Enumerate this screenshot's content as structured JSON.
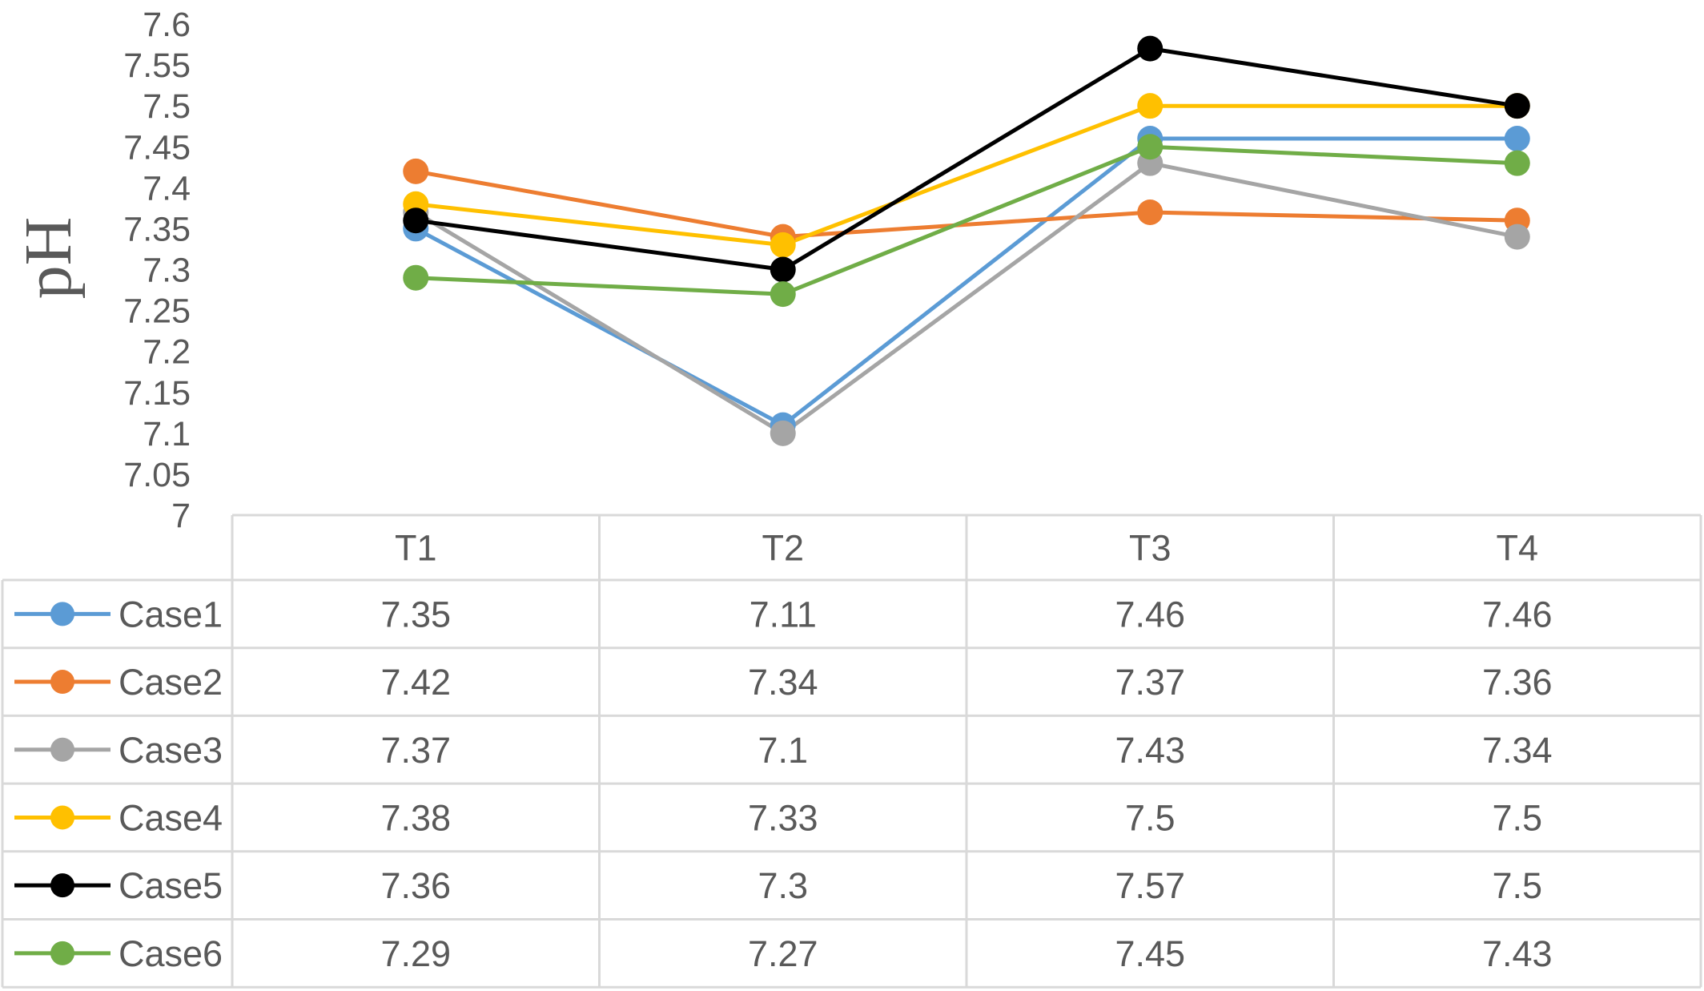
{
  "chart_data": {
    "type": "line",
    "xlabel": "",
    "ylabel": "pH",
    "categories": [
      "T1",
      "T2",
      "T3",
      "T4"
    ],
    "ylim": [
      7,
      7.6
    ],
    "yticks": [
      "7",
      "7.05",
      "7.1",
      "7.15",
      "7.2",
      "7.25",
      "7.3",
      "7.35",
      "7.4",
      "7.45",
      "7.5",
      "7.55",
      "7.6"
    ],
    "grid": false,
    "legend": "data-table-left",
    "series": [
      {
        "name": "Case1",
        "color": "#5B9BD5",
        "values": [
          7.35,
          7.11,
          7.46,
          7.46
        ],
        "labels": [
          "7.35",
          "7.11",
          "7.46",
          "7.46"
        ]
      },
      {
        "name": "Case2",
        "color": "#ED7D31",
        "values": [
          7.42,
          7.34,
          7.37,
          7.36
        ],
        "labels": [
          "7.42",
          "7.34",
          "7.37",
          "7.36"
        ]
      },
      {
        "name": "Case3",
        "color": "#A5A5A5",
        "values": [
          7.37,
          7.1,
          7.43,
          7.34
        ],
        "labels": [
          "7.37",
          "7.1",
          "7.43",
          "7.34"
        ]
      },
      {
        "name": "Case4",
        "color": "#FFC000",
        "values": [
          7.38,
          7.33,
          7.5,
          7.5
        ],
        "labels": [
          "7.38",
          "7.33",
          "7.5",
          "7.5"
        ]
      },
      {
        "name": "Case5",
        "color": "#000000",
        "values": [
          7.36,
          7.3,
          7.57,
          7.5
        ],
        "labels": [
          "7.36",
          "7.3",
          "7.57",
          "7.5"
        ]
      },
      {
        "name": "Case6",
        "color": "#70AD47",
        "values": [
          7.29,
          7.27,
          7.45,
          7.43
        ],
        "labels": [
          "7.29",
          "7.27",
          "7.45",
          "7.43"
        ]
      }
    ]
  }
}
